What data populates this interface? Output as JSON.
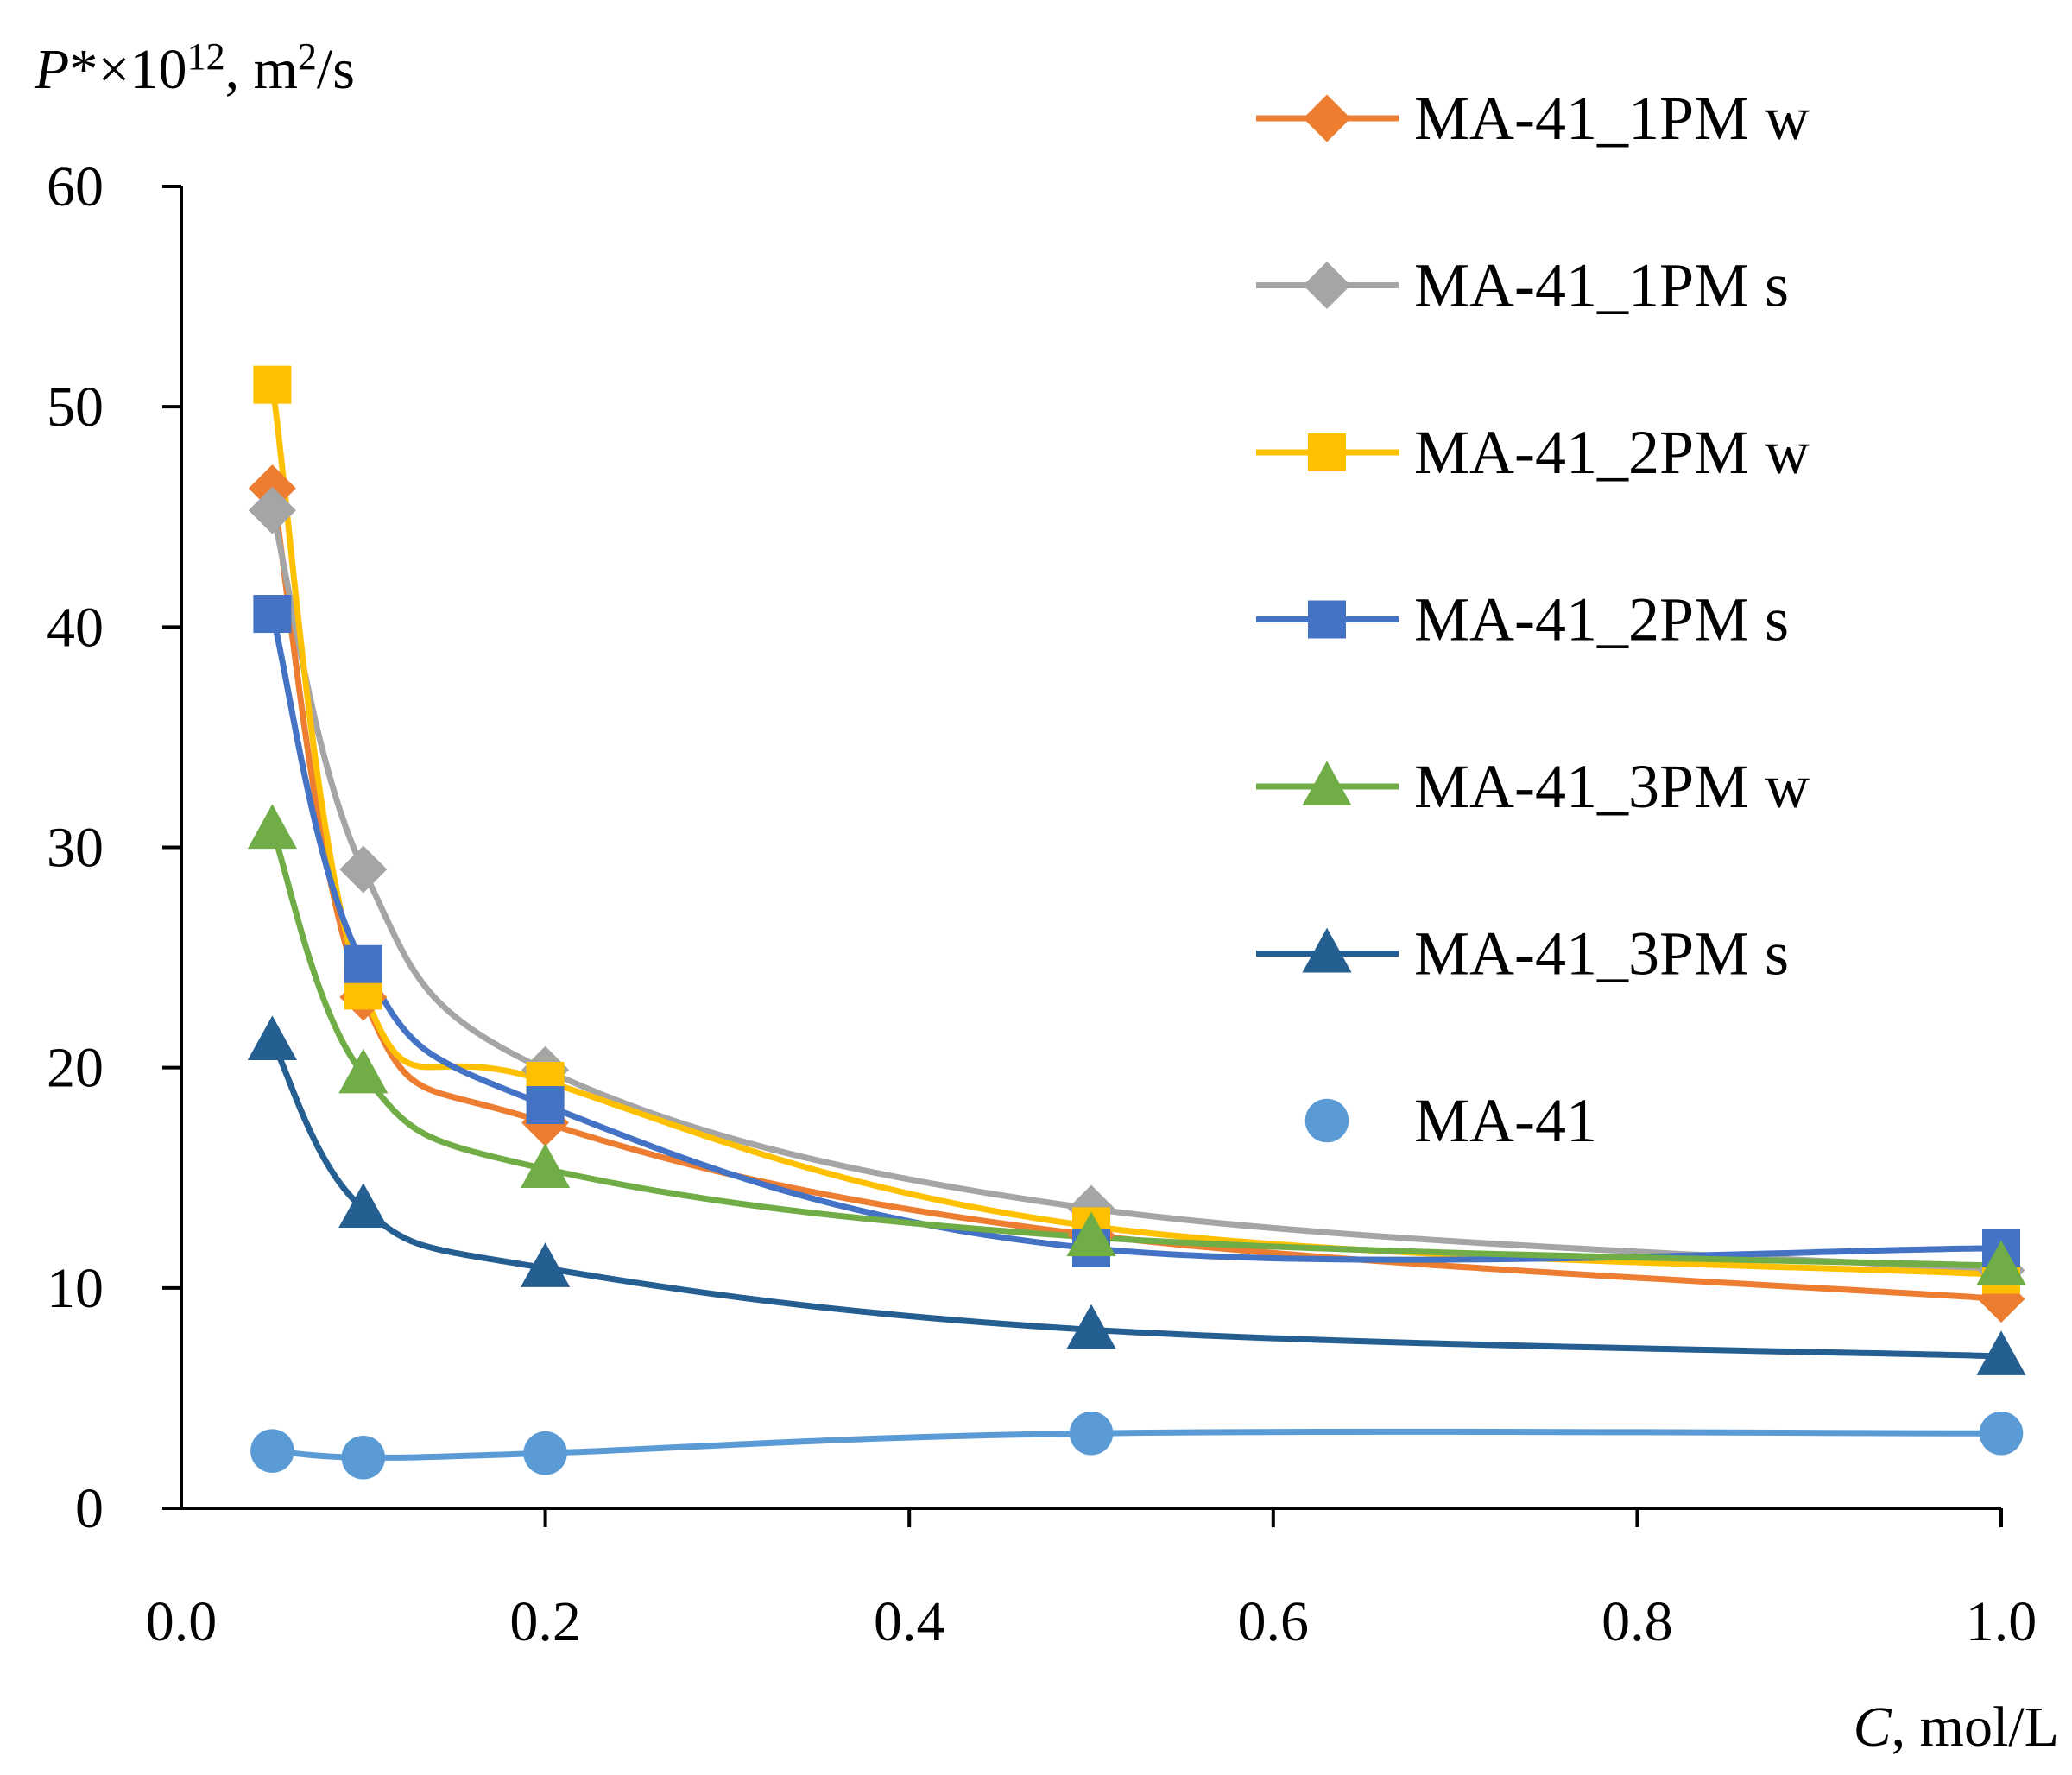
{
  "chart_data": {
    "type": "line",
    "smooth": true,
    "ylabel": {
      "italic": "P",
      "pre": "*×10",
      "exp1": "12",
      "mid": ", m",
      "exp2": "2",
      "post": "/s"
    },
    "xlabel": {
      "italic": "C",
      "post": ", mol/L"
    },
    "xlim": [
      0.0,
      1.0
    ],
    "ylim": [
      0,
      60
    ],
    "xticks": [
      0.0,
      0.2,
      0.4,
      0.6,
      0.8,
      1.0
    ],
    "xtick_labels": [
      "0.0",
      "0.2",
      "0.4",
      "0.6",
      "0.8",
      "1.0"
    ],
    "yticks": [
      0,
      10,
      20,
      30,
      40,
      50,
      60
    ],
    "ytick_labels": [
      "0",
      "10",
      "20",
      "30",
      "40",
      "50",
      "60"
    ],
    "grid": false,
    "legend_position": "top-right",
    "x": [
      0.05,
      0.1,
      0.2,
      0.5,
      1.0
    ],
    "series": [
      {
        "name": "MA-41_1PM w",
        "color": "#ED7D31",
        "marker": "diamond",
        "values": [
          46.3,
          23.2,
          17.5,
          12.4,
          9.5
        ]
      },
      {
        "name": "MA-41_1PM s",
        "color": "#A5A5A5",
        "marker": "diamond",
        "values": [
          45.3,
          29.0,
          19.9,
          13.6,
          10.8
        ]
      },
      {
        "name": "MA-41_2PM w",
        "color": "#FFC000",
        "marker": "square",
        "values": [
          51.0,
          23.5,
          19.4,
          12.8,
          10.6
        ]
      },
      {
        "name": "MA-41_2PM s",
        "color": "#4472C4",
        "marker": "square",
        "values": [
          40.6,
          24.7,
          18.3,
          11.8,
          11.8
        ]
      },
      {
        "name": "MA-41_3PM w",
        "color": "#70AD47",
        "marker": "triangle",
        "values": [
          30.8,
          19.7,
          15.4,
          12.3,
          11.0
        ]
      },
      {
        "name": "MA-41_3PM s",
        "color": "#255E91",
        "marker": "triangle",
        "values": [
          21.2,
          13.6,
          10.9,
          8.1,
          6.9
        ]
      },
      {
        "name": "MA-41",
        "color": "#5B9BD5",
        "marker": "circle",
        "values": [
          2.6,
          2.3,
          2.5,
          3.4,
          3.4
        ]
      }
    ]
  }
}
